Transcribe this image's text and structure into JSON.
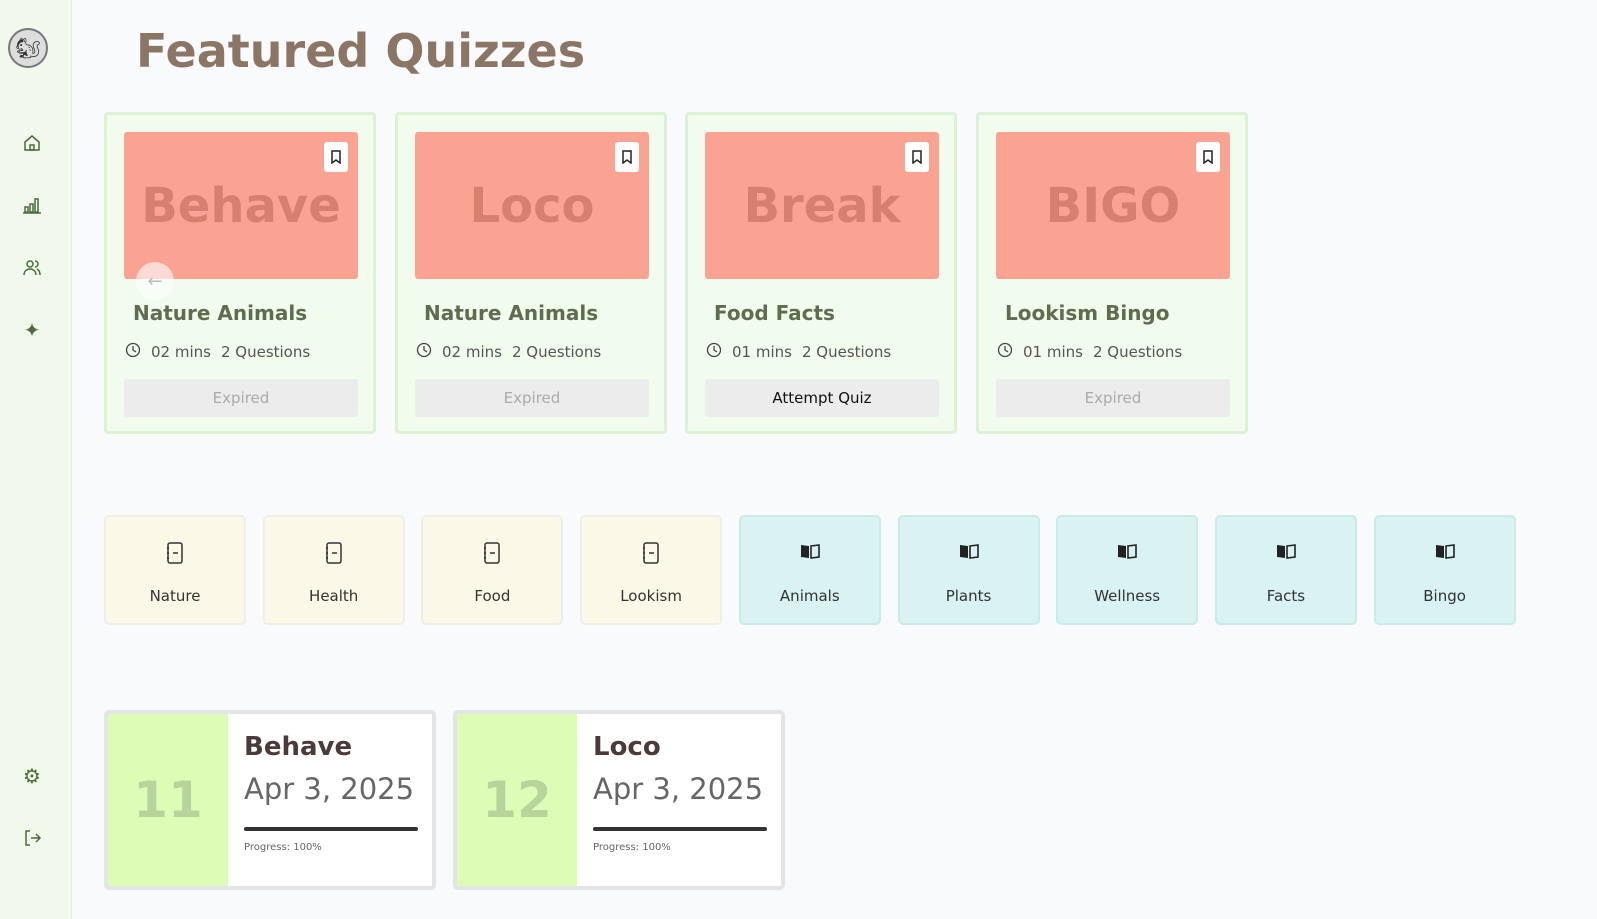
{
  "sidebar": {
    "logo": "squirrel-logo",
    "items": [
      {
        "name": "home",
        "icon": "home-icon"
      },
      {
        "name": "stats",
        "icon": "bar-chart-icon"
      },
      {
        "name": "users",
        "icon": "users-icon"
      },
      {
        "name": "sparkle",
        "icon": "sparkles-icon"
      },
      {
        "name": "settings",
        "icon": "gear-icon"
      },
      {
        "name": "logout",
        "icon": "logout-icon"
      }
    ]
  },
  "header": {
    "title": "Featured Quizzes"
  },
  "quizzes": [
    {
      "banner": "Behave",
      "title": "Nature Animals",
      "duration": "02 mins",
      "questions": "2 Questions",
      "button": "Expired",
      "active": false
    },
    {
      "banner": "Loco",
      "title": "Nature Animals",
      "duration": "02 mins",
      "questions": "2 Questions",
      "button": "Expired",
      "active": false
    },
    {
      "banner": "Break",
      "title": "Food Facts",
      "duration": "01 mins",
      "questions": "2 Questions",
      "button": "Attempt Quiz",
      "active": true
    },
    {
      "banner": "BIGO",
      "title": "Lookism Bingo",
      "duration": "01 mins",
      "questions": "2 Questions",
      "button": "Expired",
      "active": false
    }
  ],
  "categories": [
    {
      "label": "Nature",
      "icon": "notebook-icon"
    },
    {
      "label": "Health",
      "icon": "notebook-icon"
    },
    {
      "label": "Food",
      "icon": "notebook-icon"
    },
    {
      "label": "Lookism",
      "icon": "notebook-icon"
    },
    {
      "label": "Animals",
      "icon": "book-icon"
    },
    {
      "label": "Plants",
      "icon": "book-icon"
    },
    {
      "label": "Wellness",
      "icon": "book-icon"
    },
    {
      "label": "Facts",
      "icon": "book-icon"
    },
    {
      "label": "Bingo",
      "icon": "book-icon"
    }
  ],
  "progress": [
    {
      "number": "11",
      "title": "Behave",
      "date": "Apr 3, 2025",
      "label": "Progress: 100%",
      "value": 100
    },
    {
      "number": "12",
      "title": "Loco",
      "date": "Apr 3, 2025",
      "label": "Progress: 100%",
      "value": 100
    }
  ],
  "colors": {
    "banner": "#fba392",
    "accent": "#5d6e4e",
    "title": "#8b7565"
  }
}
